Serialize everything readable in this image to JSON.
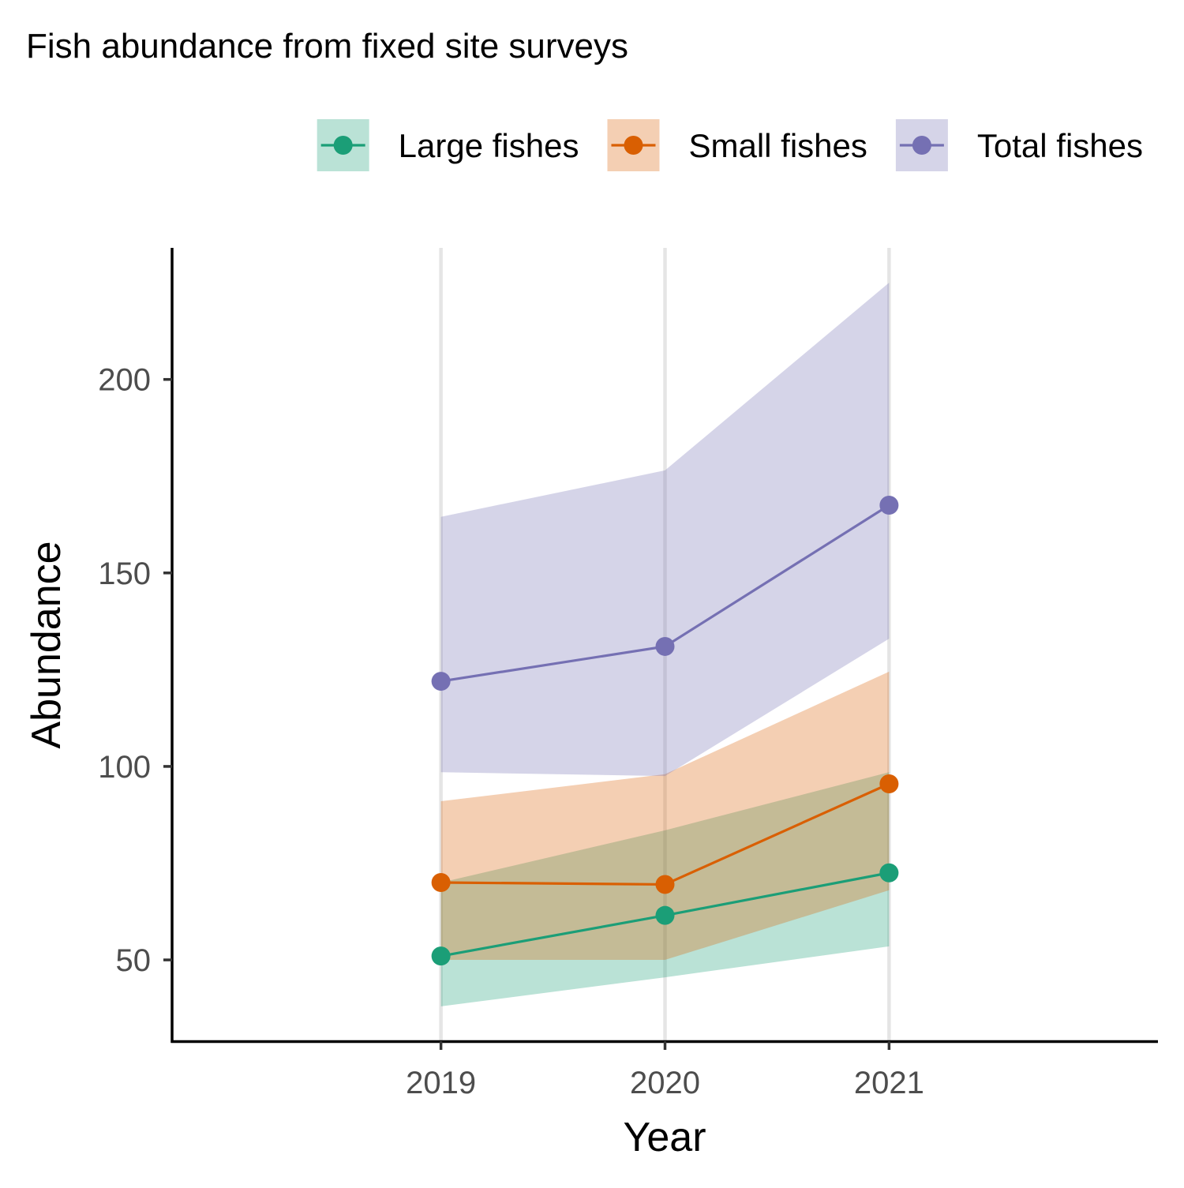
{
  "chart_data": {
    "type": "line",
    "title": "Fish abundance from fixed site surveys",
    "xlabel": "Year",
    "ylabel": "Abundance",
    "x": [
      2019,
      2020,
      2021
    ],
    "x_tick_labels": [
      "2019",
      "2020",
      "2021"
    ],
    "xlim": [
      2017.8,
      2022.2
    ],
    "ylim": [
      29,
      234
    ],
    "y_ticks": [
      50,
      100,
      150,
      200
    ],
    "y_tick_labels": [
      "50",
      "100",
      "150",
      "200"
    ],
    "grid": "major vertical only",
    "legend_position": "top-right",
    "series": [
      {
        "name": "Large fishes",
        "color": "#1b9e77",
        "values": [
          51,
          61.5,
          72.5
        ],
        "ribbon_lower": [
          38,
          45.5,
          53.5
        ],
        "ribbon_upper": [
          70,
          83.5,
          98.5
        ]
      },
      {
        "name": "Small fishes",
        "color": "#d95f02",
        "values": [
          70,
          69.5,
          95.5
        ],
        "ribbon_lower": [
          50,
          50,
          68
        ],
        "ribbon_upper": [
          91,
          98,
          124.5
        ]
      },
      {
        "name": "Total fishes",
        "color": "#7570b3",
        "values": [
          122,
          131,
          167.5
        ],
        "ribbon_lower": [
          98.5,
          97.5,
          133
        ],
        "ribbon_upper": [
          164.5,
          176.5,
          225
        ]
      }
    ]
  }
}
